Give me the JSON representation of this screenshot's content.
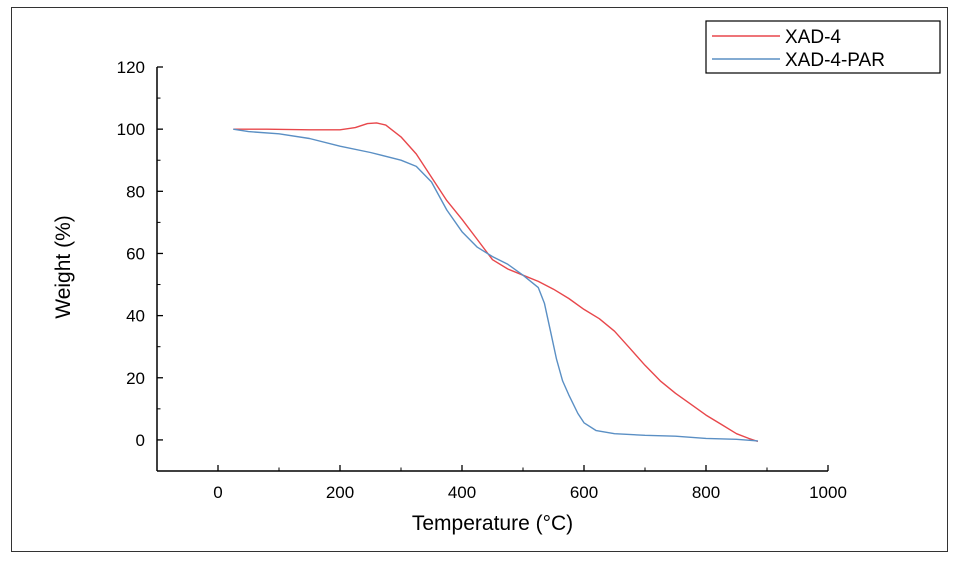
{
  "chart_data": {
    "type": "line",
    "title": "",
    "xlabel": "Temperature (°C)",
    "ylabel": "Weight (%)",
    "xlim": [
      -100,
      1000
    ],
    "ylim": [
      -10,
      120
    ],
    "x_ticks": [
      0,
      200,
      400,
      600,
      800,
      1000
    ],
    "y_ticks": [
      0,
      20,
      40,
      60,
      80,
      100,
      120
    ],
    "legend": {
      "position": "top-right"
    },
    "series": [
      {
        "name": "XAD-4",
        "color": "#e8474b",
        "x": [
          25,
          80,
          150,
          200,
          225,
          245,
          260,
          275,
          300,
          325,
          350,
          375,
          400,
          425,
          450,
          475,
          500,
          525,
          550,
          575,
          600,
          625,
          650,
          675,
          700,
          725,
          750,
          775,
          800,
          825,
          850,
          870,
          885
        ],
        "y": [
          100,
          100,
          99.8,
          99.8,
          100.5,
          101.8,
          102,
          101.3,
          97.5,
          92,
          84.5,
          77,
          71,
          64.5,
          58,
          55,
          53,
          51,
          48.5,
          45.5,
          42,
          39,
          35,
          29.5,
          24,
          19,
          15,
          11.5,
          8,
          5,
          2,
          0.5,
          -0.5
        ]
      },
      {
        "name": "XAD-4-PAR",
        "color": "#5a8fc4",
        "x": [
          25,
          50,
          100,
          150,
          200,
          250,
          300,
          325,
          350,
          375,
          400,
          425,
          450,
          475,
          500,
          525,
          535,
          545,
          555,
          565,
          575,
          590,
          600,
          620,
          650,
          700,
          750,
          800,
          850,
          885
        ],
        "y": [
          100,
          99.2,
          98.5,
          97,
          94.5,
          92.5,
          90,
          88,
          83,
          74,
          67,
          62,
          59,
          56.5,
          53,
          49,
          44,
          35,
          26,
          19,
          14.5,
          8.5,
          5.5,
          3,
          2,
          1.5,
          1.2,
          0.5,
          0.2,
          -0.3
        ]
      }
    ]
  }
}
